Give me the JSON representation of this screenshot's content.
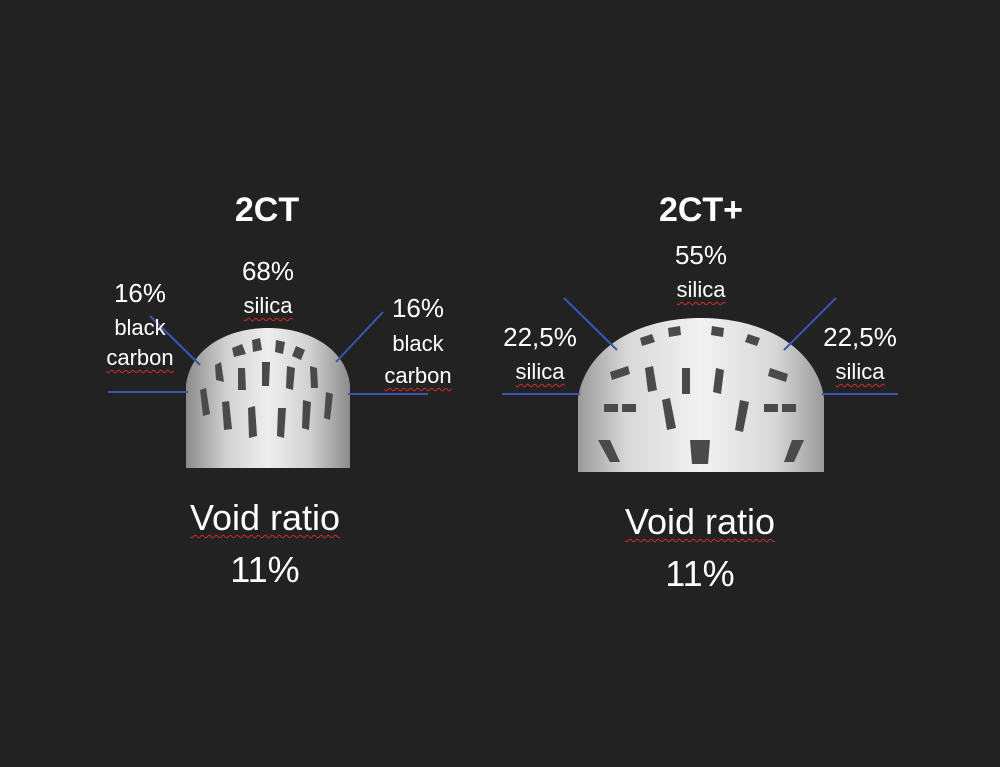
{
  "left": {
    "title": "2CT",
    "center": {
      "percent": "68%",
      "material": "silica"
    },
    "left_zone": {
      "percent": "16%",
      "material_line1": "black",
      "material_line2": "carbon"
    },
    "right_zone": {
      "percent": "16%",
      "material_line1": "black",
      "material_line2": "carbon"
    },
    "void_label": "Void ratio",
    "void_value": "11%"
  },
  "right": {
    "title": "2CT+",
    "center": {
      "percent": "55%",
      "material": "silica"
    },
    "left_zone": {
      "percent": "22,5%",
      "material": "silica"
    },
    "right_zone": {
      "percent": "22,5%",
      "material": "silica"
    },
    "void_label": "Void ratio",
    "void_value": "11%"
  },
  "colors": {
    "background": "#222222",
    "text": "#ffffff",
    "leader_line": "#3a56b0",
    "spellcheck_underline": "#d22b2b"
  }
}
